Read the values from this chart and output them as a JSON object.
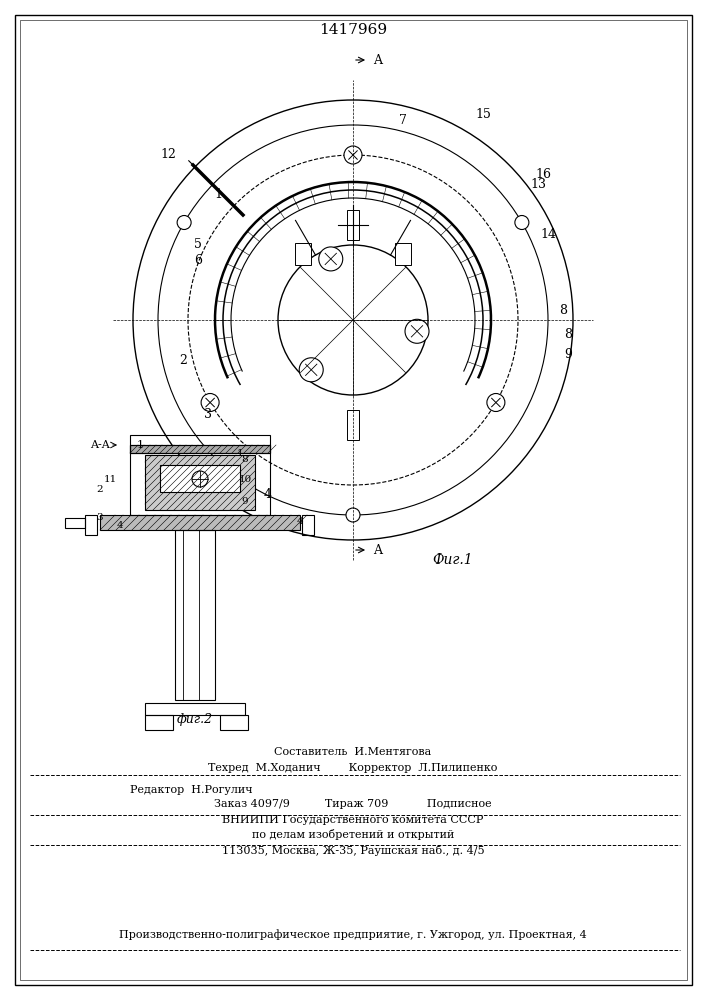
{
  "title": "1417969",
  "fig1_label": "Фиг.1",
  "fig2_label": "фиг.2",
  "section_label": "A-A",
  "arrow_label": "A",
  "bg_color": "#ffffff",
  "line_color": "#000000",
  "hatch_color": "#000000",
  "footer_lines": [
    "Составитель  И.Ментягова",
    "Техред  М.Ходанич        Корректор  Л.Пилипенко",
    "Редактор  Н.Рогулич",
    "Заказ 4097/9          Тираж 709           Подписное",
    "ВНИИПИ Государственного комитета СССР",
    "по делам изобретений и открытий",
    "113035, Москва, Ж-35, Раушская наб., д. 4/5",
    "Производственно-полиграфическое предприятие, г. Ужгород, ул. Проектная, 4"
  ]
}
